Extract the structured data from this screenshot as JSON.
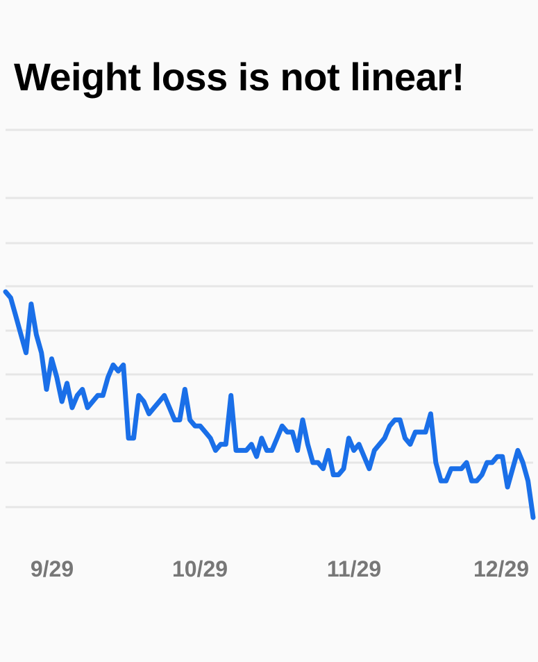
{
  "chart_data": {
    "type": "line",
    "title": "Weight loss is not linear!",
    "xlabel": "",
    "ylabel": "",
    "x_tick_labels": [
      "9/29",
      "10/29",
      "11/29",
      "12/29"
    ],
    "grid": true,
    "legend": "none",
    "line_color": "#1a6fe8",
    "grid_color": "#e6e6e6",
    "tick_color": "#777777",
    "series": [
      {
        "name": "",
        "values": [
          0.79,
          0.78,
          0.75,
          0.72,
          0.69,
          0.77,
          0.72,
          0.69,
          0.63,
          0.68,
          0.65,
          0.61,
          0.64,
          0.6,
          0.62,
          0.63,
          0.6,
          0.61,
          0.62,
          0.62,
          0.65,
          0.67,
          0.66,
          0.67,
          0.55,
          0.55,
          0.62,
          0.61,
          0.59,
          0.6,
          0.61,
          0.62,
          0.6,
          0.58,
          0.58,
          0.63,
          0.58,
          0.57,
          0.57,
          0.56,
          0.55,
          0.53,
          0.54,
          0.54,
          0.62,
          0.53,
          0.53,
          0.53,
          0.54,
          0.52,
          0.55,
          0.53,
          0.53,
          0.55,
          0.57,
          0.56,
          0.56,
          0.53,
          0.58,
          0.54,
          0.51,
          0.51,
          0.5,
          0.53,
          0.49,
          0.49,
          0.5,
          0.55,
          0.53,
          0.54,
          0.52,
          0.5,
          0.53,
          0.54,
          0.55,
          0.57,
          0.58,
          0.58,
          0.55,
          0.54,
          0.56,
          0.56,
          0.56,
          0.59,
          0.51,
          0.48,
          0.48,
          0.5,
          0.5,
          0.5,
          0.51,
          0.48,
          0.48,
          0.49,
          0.51,
          0.51,
          0.52,
          0.52,
          0.47,
          0.5,
          0.53,
          0.51,
          0.48,
          0.42
        ]
      }
    ]
  }
}
